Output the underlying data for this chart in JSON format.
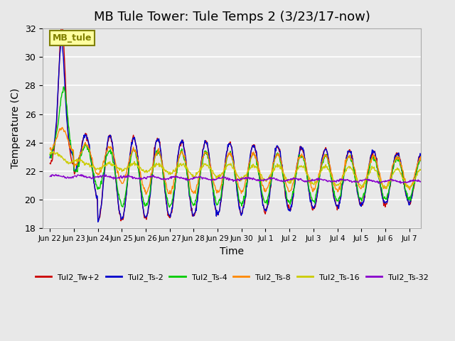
{
  "title": "MB Tule Tower: Tule Temps 2 (3/23/17-now)",
  "xlabel": "Time",
  "ylabel": "Temperature (C)",
  "ylim": [
    18,
    32
  ],
  "yticks": [
    18,
    20,
    22,
    24,
    26,
    28,
    30,
    32
  ],
  "background_color": "#e8e8e8",
  "title_fontsize": 13,
  "label_fontsize": 10,
  "annotation_text": "MB_tule",
  "annotation_bg": "#ffffa0",
  "annotation_border": "#808000",
  "series": [
    {
      "label": "Tul2_Tw+2",
      "color": "#cc0000"
    },
    {
      "label": "Tul2_Ts-2",
      "color": "#0000cc"
    },
    {
      "label": "Tul2_Ts-4",
      "color": "#00cc00"
    },
    {
      "label": "Tul2_Ts-8",
      "color": "#ff8800"
    },
    {
      "label": "Tul2_Ts-16",
      "color": "#cccc00"
    },
    {
      "label": "Tul2_Ts-32",
      "color": "#8800cc"
    }
  ],
  "xtick_positions": [
    0,
    1,
    2,
    3,
    4,
    5,
    6,
    7,
    8,
    9,
    10,
    11,
    12,
    13,
    14,
    15
  ],
  "xtick_labels": [
    "Jun 22",
    "Jun 23",
    "Jun 24",
    "Jun 25",
    "Jun 26",
    "Jun 27",
    "Jun 28",
    "Jun 29",
    "Jun 30",
    "Jul 1",
    "Jul 2",
    "Jul 3",
    "Jul 4",
    "Jul 5",
    "Jul 6",
    "Jul 7"
  ],
  "num_days": 16
}
